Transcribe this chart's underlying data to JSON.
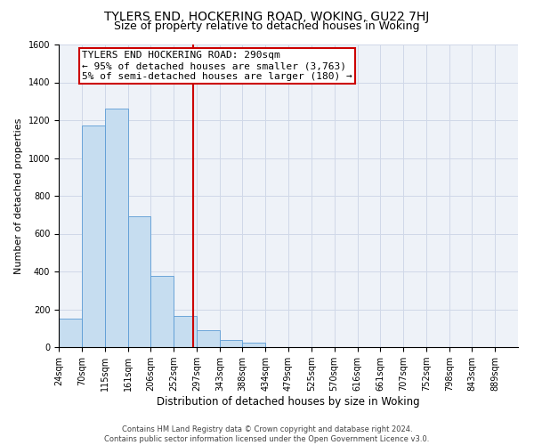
{
  "title": "TYLERS END, HOCKERING ROAD, WOKING, GU22 7HJ",
  "subtitle": "Size of property relative to detached houses in Woking",
  "xlabel": "Distribution of detached houses by size in Woking",
  "ylabel": "Number of detached properties",
  "footer_line1": "Contains HM Land Registry data © Crown copyright and database right 2024.",
  "footer_line2": "Contains public sector information licensed under the Open Government Licence v3.0.",
  "annotation_line1": "TYLERS END HOCKERING ROAD: 290sqm",
  "annotation_line2": "← 95% of detached houses are smaller (3,763)",
  "annotation_line3": "5% of semi-detached houses are larger (180) →",
  "vline_x": 290,
  "bar_edges": [
    24,
    70,
    115,
    161,
    206,
    252,
    297,
    343,
    388,
    434,
    479,
    525,
    570,
    616,
    661,
    707,
    752,
    798,
    843,
    889,
    934
  ],
  "bar_heights": [
    150,
    1170,
    1260,
    690,
    375,
    165,
    90,
    38,
    22,
    0,
    0,
    0,
    0,
    0,
    0,
    0,
    0,
    0,
    0,
    0
  ],
  "bar_color": "#c6ddf0",
  "bar_edgecolor": "#5b9bd5",
  "vline_color": "#cc0000",
  "annotation_box_edgecolor": "#cc0000",
  "annotation_box_facecolor": "#ffffff",
  "ylim": [
    0,
    1600
  ],
  "yticks": [
    0,
    200,
    400,
    600,
    800,
    1000,
    1200,
    1400,
    1600
  ],
  "grid_color": "#d0d8e8",
  "background_color": "#ffffff",
  "plot_bg_color": "#eef2f8",
  "title_fontsize": 10,
  "subtitle_fontsize": 9,
  "xlabel_fontsize": 8.5,
  "ylabel_fontsize": 8,
  "tick_fontsize": 7,
  "footer_fontsize": 6,
  "annotation_fontsize": 8
}
